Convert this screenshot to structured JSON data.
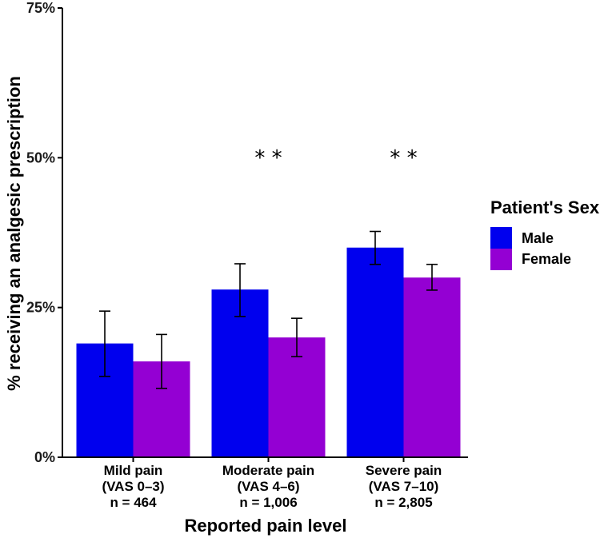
{
  "chart_data": {
    "type": "bar",
    "title": "",
    "xlabel": "Reported pain level",
    "ylabel": "% receiving an analgesic prescription",
    "ylim": [
      0,
      75
    ],
    "yticks": [
      0,
      25,
      50,
      75
    ],
    "ytick_labels": [
      "0%",
      "25%",
      "50%",
      "75%"
    ],
    "categories": [
      {
        "line1": "Mild pain",
        "line2": "(VAS 0–3)",
        "line3": "n = 464"
      },
      {
        "line1": "Moderate pain",
        "line2": "(VAS 4–6)",
        "line3": "n = 1,006"
      },
      {
        "line1": "Severe pain",
        "line2": "(VAS 7–10)",
        "line3": "n = 2,805"
      }
    ],
    "series": [
      {
        "name": "Male",
        "color": "#0000ee",
        "values": [
          19,
          28,
          35
        ],
        "err_low": [
          13.5,
          23.5,
          32.2
        ],
        "err_high": [
          24.4,
          32.3,
          37.7
        ]
      },
      {
        "name": "Female",
        "color": "#9400d3",
        "values": [
          16,
          20,
          30
        ],
        "err_low": [
          11.5,
          16.8,
          27.9
        ],
        "err_high": [
          20.5,
          23.2,
          32.2
        ]
      }
    ],
    "annotations": [
      "",
      "* *",
      "* *"
    ],
    "legend": {
      "title": "Patient's Sex",
      "position": "right"
    }
  }
}
